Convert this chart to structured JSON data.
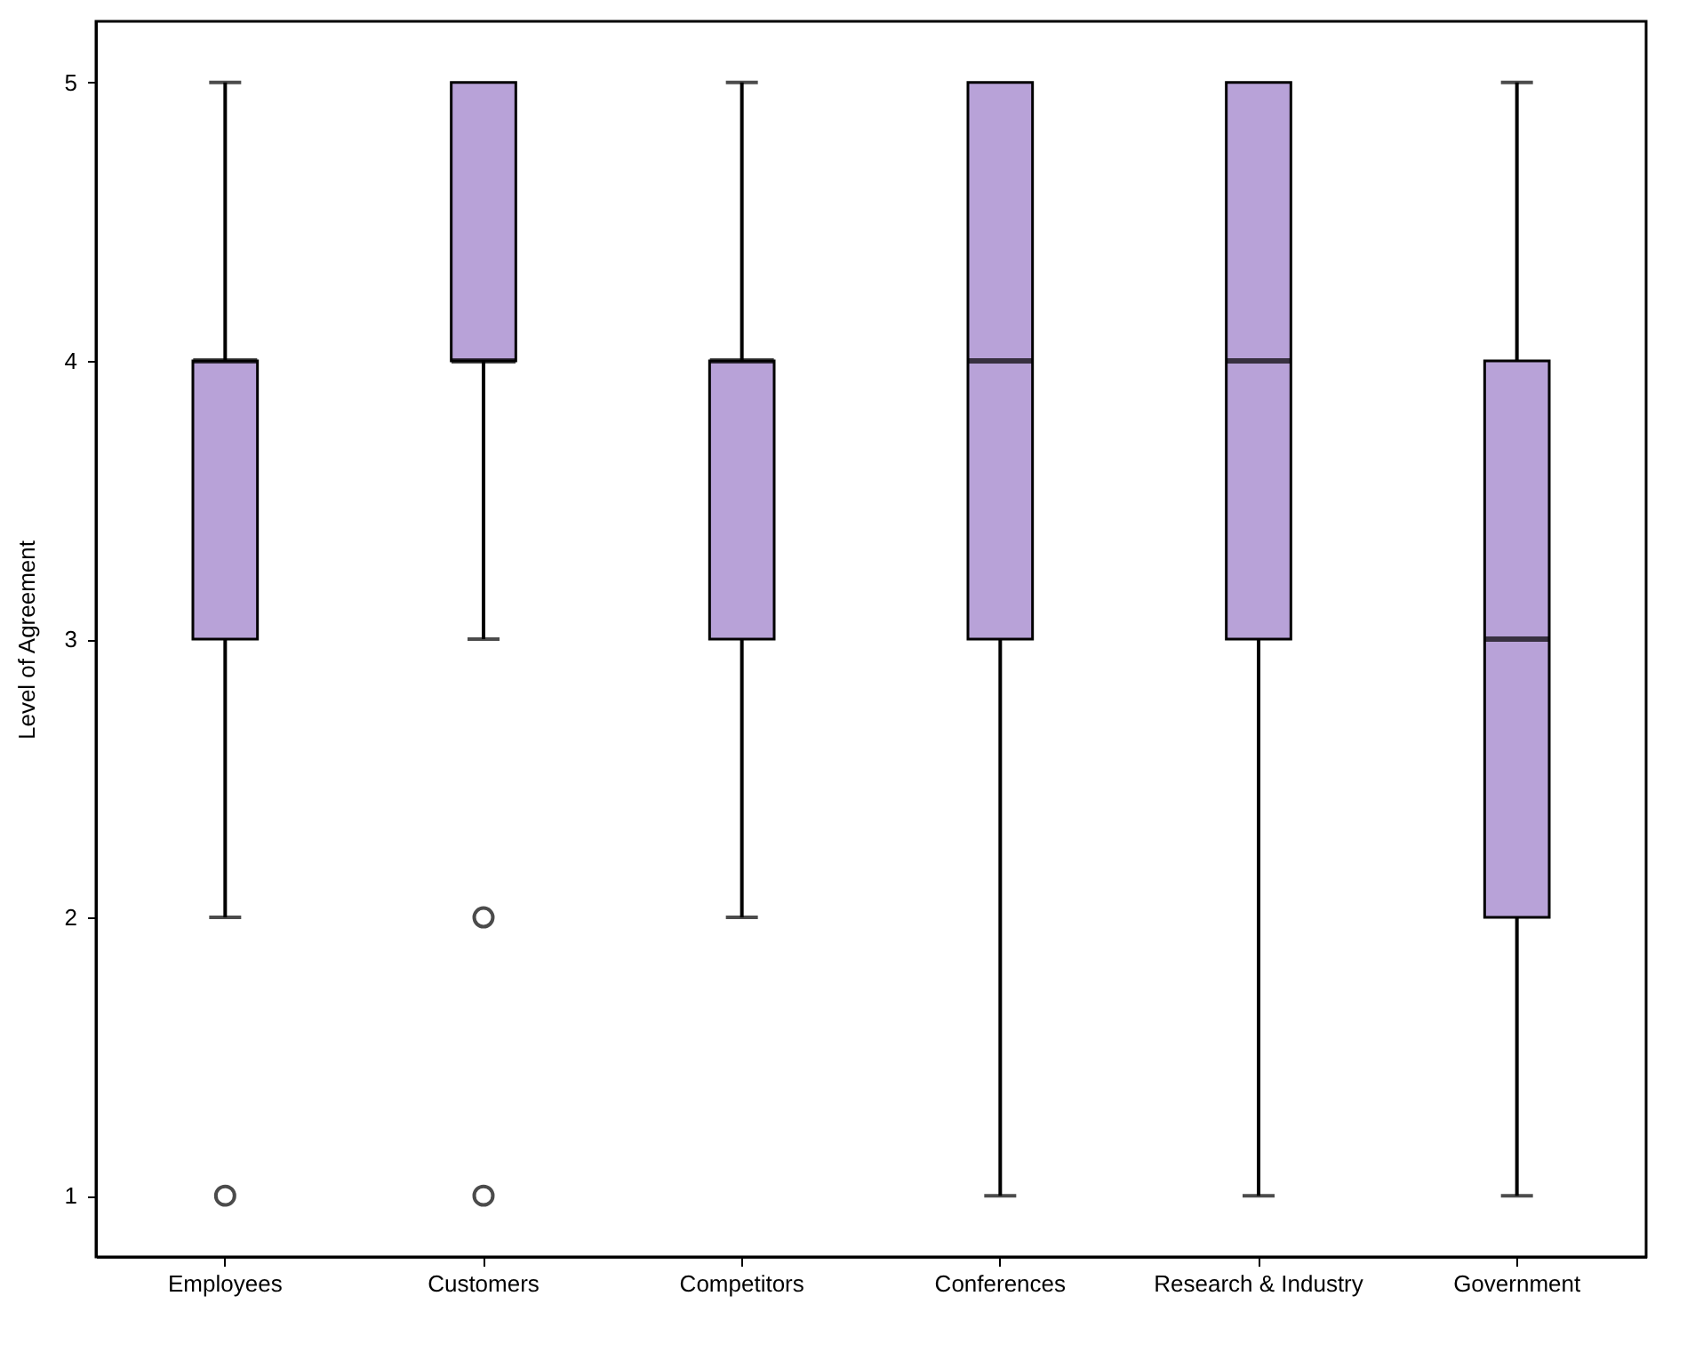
{
  "chart_data": {
    "type": "box",
    "ylabel": "Level of Agreement",
    "categories": [
      "Employees",
      "Customers",
      "Competitors",
      "Conferences",
      "Research & Industry",
      "Government"
    ],
    "color": "#b8a2d8",
    "boxes": [
      {
        "low": 2,
        "q1": 3,
        "median": 4,
        "q3": 4,
        "high": 5,
        "outliers": [
          1
        ]
      },
      {
        "low": 3,
        "q1": 4,
        "median": 4,
        "q3": 5,
        "high": 5,
        "outliers": [
          2,
          1
        ]
      },
      {
        "low": 2,
        "q1": 3,
        "median": 4,
        "q3": 4,
        "high": 5
      },
      {
        "low": 1,
        "q1": 3,
        "median": 4,
        "q3": 5,
        "high": 5
      },
      {
        "low": 1,
        "q1": 3,
        "median": 4,
        "q3": 5,
        "high": 5
      },
      {
        "low": 1,
        "q1": 2,
        "median": 3,
        "q3": 4,
        "high": 5
      }
    ],
    "ylim": [
      0.78,
      5.22
    ],
    "yticks": [
      1,
      2,
      3,
      4,
      5
    ],
    "grid": false,
    "marker": "circle"
  }
}
